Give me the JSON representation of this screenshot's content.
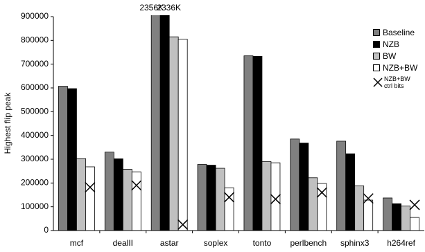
{
  "chart_data": {
    "type": "bar",
    "y_label": "Highest flip peak",
    "categories": [
      "mcf",
      "dealII",
      "astar",
      "soplex",
      "tonto",
      "perlbench",
      "sphinx3",
      "h264ref"
    ],
    "series": [
      {
        "name": "Baseline",
        "color": "#808080",
        "values": [
          607000,
          330000,
          2356000,
          278000,
          735000,
          385000,
          376000,
          137000
        ],
        "value_labels": [
          null,
          null,
          "2356K",
          null,
          null,
          null,
          null,
          null
        ]
      },
      {
        "name": "NZB",
        "color": "#000000",
        "values": [
          597000,
          302000,
          2336000,
          275000,
          733000,
          368000,
          323000,
          113000
        ],
        "value_labels": [
          null,
          null,
          "2336K",
          null,
          null,
          null,
          null,
          null
        ]
      },
      {
        "name": "BW",
        "color": "#c0c0c0",
        "values": [
          303000,
          258000,
          815000,
          262000,
          290000,
          222000,
          188000,
          103000
        ]
      },
      {
        "name": "NZB+BW",
        "color": "#ffffff",
        "values": [
          268000,
          247000,
          805000,
          180000,
          285000,
          198000,
          128000,
          55000
        ]
      },
      {
        "name": "NZB+BW ctrl bits",
        "color": "#000000",
        "marker": "x",
        "values": [
          182000,
          190000,
          25000,
          140000,
          132000,
          160000,
          135000,
          108000
        ]
      }
    ],
    "ylim": [
      0,
      900000
    ],
    "yticks": [
      0,
      100000,
      200000,
      300000,
      400000,
      500000,
      600000,
      700000,
      800000,
      900000
    ],
    "grid": false
  }
}
